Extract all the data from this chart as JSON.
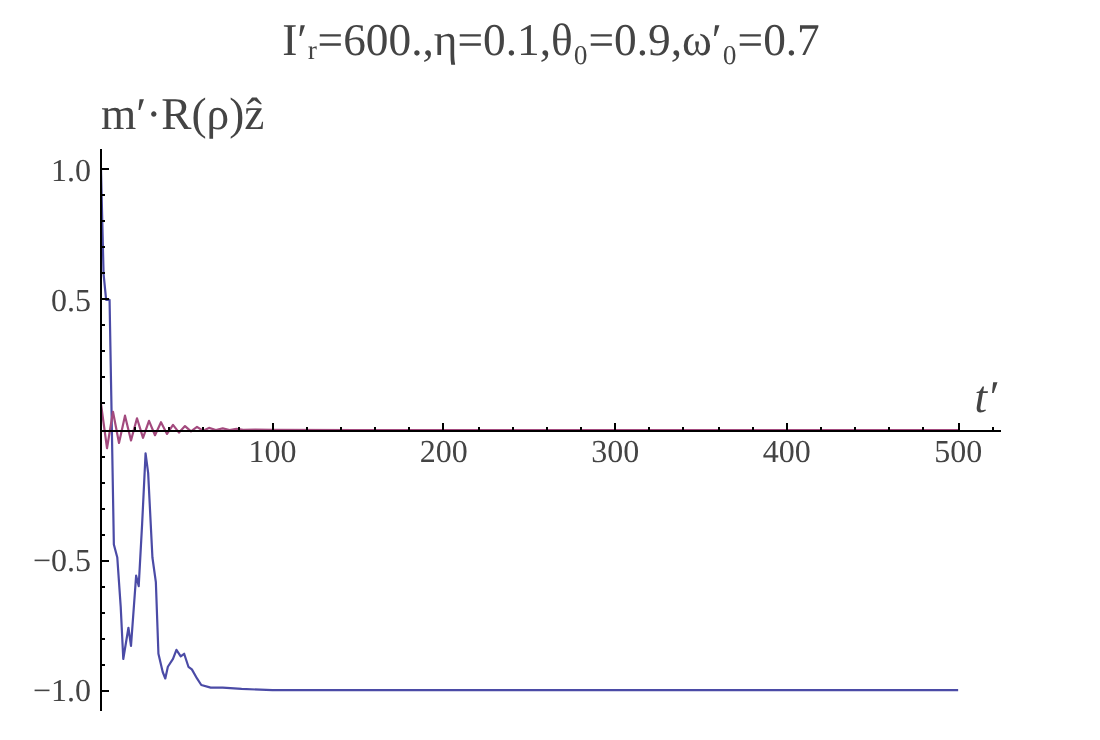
{
  "chart_data": {
    "type": "line",
    "title": "I′ᵣ=600.,η=0.1,θ₀=0.9,ω′₀=0.7",
    "xlabel": "t′",
    "ylabel": "m′·R(ρ)ẑ",
    "xlim": [
      0,
      525
    ],
    "ylim": [
      -1.08,
      1.08
    ],
    "xticks": [
      100,
      200,
      300,
      400,
      500
    ],
    "yticks": [
      {
        "value": -1,
        "label": "−1.0"
      },
      {
        "value": -0.5,
        "label": "−0.5"
      },
      {
        "value": 0.5,
        "label": "0.5"
      },
      {
        "value": 1,
        "label": "1.0"
      }
    ],
    "grid": false,
    "series": [
      {
        "color": "#4b4ba6",
        "x": [
          0,
          1.5,
          3,
          5,
          6,
          7.5,
          9.5,
          11.5,
          13,
          16,
          17.5,
          20.5,
          22,
          24,
          26,
          27.5,
          30,
          32,
          33.5,
          36,
          37.5,
          39,
          42,
          44,
          46.5,
          48.5,
          51,
          53,
          56,
          58.5,
          64,
          71,
          82,
          100,
          200,
          300,
          400,
          500
        ],
        "values": [
          1.0,
          0.6,
          0.5,
          0.5,
          0.13,
          -0.44,
          -0.49,
          -0.68,
          -0.88,
          -0.76,
          -0.83,
          -0.56,
          -0.6,
          -0.36,
          -0.09,
          -0.165,
          -0.49,
          -0.585,
          -0.86,
          -0.93,
          -0.955,
          -0.91,
          -0.88,
          -0.845,
          -0.87,
          -0.86,
          -0.91,
          -0.92,
          -0.955,
          -0.98,
          -0.99,
          -0.99,
          -0.995,
          -1.0,
          -1.0,
          -1.0,
          -1.0,
          -1.0
        ]
      },
      {
        "color": "#a34a7e",
        "x": [
          0,
          3.5,
          7,
          10.5,
          14,
          17.5,
          21,
          24.5,
          28,
          31.5,
          35,
          38.5,
          42,
          45.5,
          49,
          52.5,
          56,
          59.5,
          63,
          67,
          71,
          75,
          79,
          83,
          90,
          100,
          150,
          500
        ],
        "values": [
          0.1,
          -0.07,
          0.07,
          -0.05,
          0.055,
          -0.04,
          0.045,
          -0.03,
          0.035,
          -0.02,
          0.03,
          -0.015,
          0.02,
          -0.01,
          0.015,
          -0.005,
          0.012,
          -0.003,
          0.008,
          0,
          0.006,
          0,
          0.004,
          0.001,
          0.002,
          0.001,
          0,
          0
        ]
      }
    ]
  }
}
